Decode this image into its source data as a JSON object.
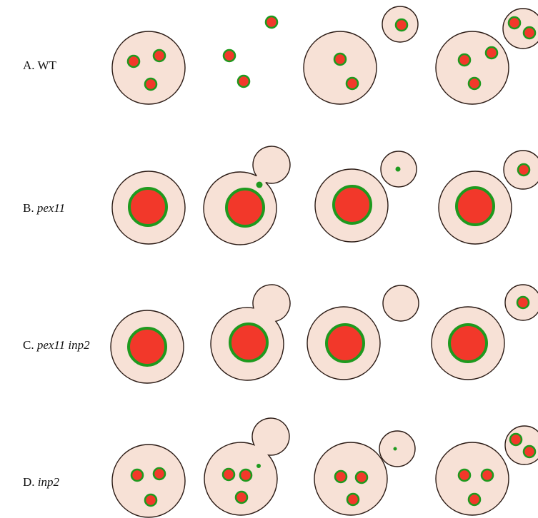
{
  "colors": {
    "background": "#ffffff",
    "cell_fill": "#f7e1d6",
    "cell_outline": "#2a1a14",
    "peroxisome_fill": "#f2382a",
    "peroxisome_ring": "#1e9a1e"
  },
  "rows": [
    {
      "id": "wt",
      "prefix": "A.",
      "name": "WT",
      "name_italic": false,
      "stages": [
        {
          "bud": "none",
          "mother_contents": "3 normal peroxisomes",
          "bud_contents": "none"
        },
        {
          "bud": "small",
          "mother_contents": "2 normal peroxisomes",
          "bud_contents": "1 normal peroxisome"
        },
        {
          "bud": "separate",
          "mother_contents": "2 normal peroxisomes",
          "bud_contents": "1 normal peroxisome"
        },
        {
          "bud": "separate",
          "mother_contents": "3 normal peroxisomes",
          "bud_contents": "2 normal peroxisomes"
        }
      ]
    },
    {
      "id": "pex11",
      "prefix": "B.",
      "name": "pex11",
      "name_italic": true,
      "stages": [
        {
          "bud": "none",
          "mother_contents": "1 enlarged peroxisome",
          "bud_contents": "none"
        },
        {
          "bud": "small",
          "mother_contents": "1 enlarged peroxisome + 1 tiny peroxisome",
          "bud_contents": "none"
        },
        {
          "bud": "separate",
          "mother_contents": "1 enlarged peroxisome",
          "bud_contents": "1 tiny peroxisome"
        },
        {
          "bud": "separate",
          "mother_contents": "1 enlarged peroxisome",
          "bud_contents": "1 normal peroxisome"
        }
      ]
    },
    {
      "id": "pex11-inp2",
      "prefix": "C.",
      "name": "pex11 inp2",
      "name_italic": true,
      "stages": [
        {
          "bud": "none",
          "mother_contents": "1 enlarged peroxisome",
          "bud_contents": "none"
        },
        {
          "bud": "small",
          "mother_contents": "1 enlarged peroxisome",
          "bud_contents": "empty"
        },
        {
          "bud": "separate",
          "mother_contents": "1 enlarged peroxisome",
          "bud_contents": "empty"
        },
        {
          "bud": "separate",
          "mother_contents": "1 enlarged peroxisome",
          "bud_contents": "1 normal peroxisome"
        }
      ]
    },
    {
      "id": "inp2",
      "prefix": "D.",
      "name": "inp2",
      "name_italic": true,
      "stages": [
        {
          "bud": "none",
          "mother_contents": "3 normal peroxisomes",
          "bud_contents": "none"
        },
        {
          "bud": "small",
          "mother_contents": "3 normal peroxisomes + 1 tiny peroxisome",
          "bud_contents": "empty"
        },
        {
          "bud": "separate",
          "mother_contents": "3 normal peroxisomes",
          "bud_contents": "1 tiny peroxisome"
        },
        {
          "bud": "separate",
          "mother_contents": "3 normal peroxisomes",
          "bud_contents": "2 normal peroxisomes"
        }
      ]
    }
  ]
}
